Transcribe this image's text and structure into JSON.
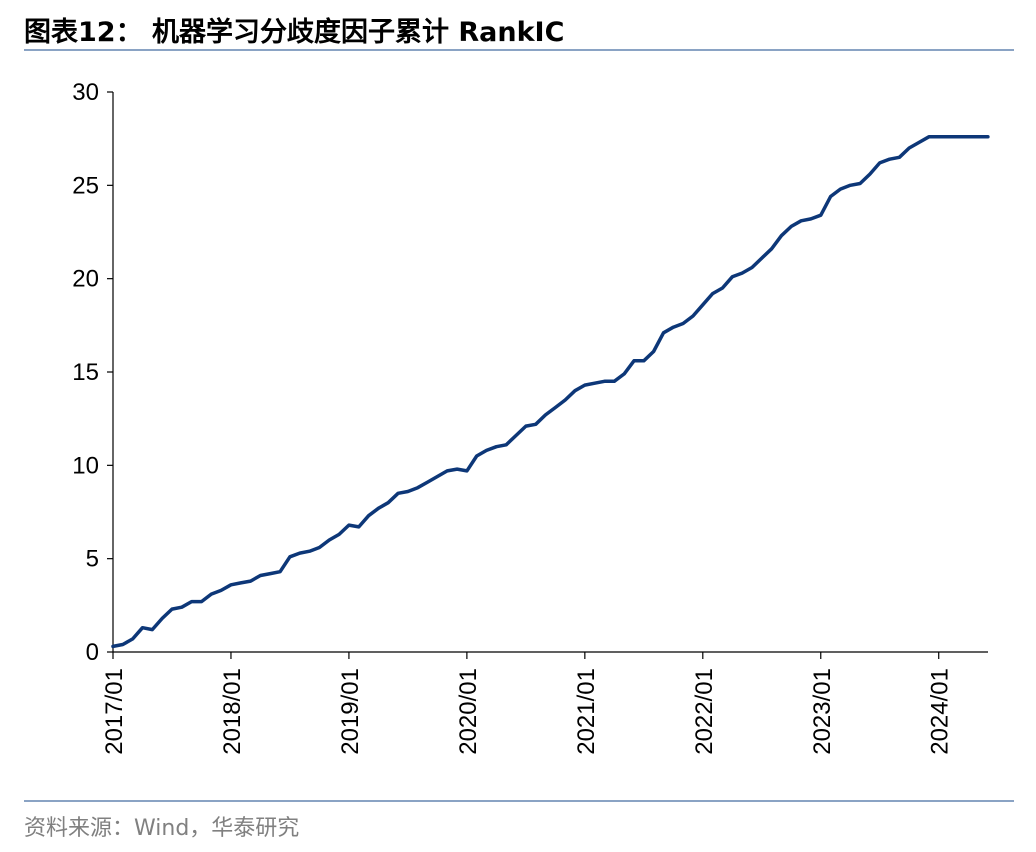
{
  "header": {
    "title": "图表12：  机器学习分歧度因子累计 RankIC"
  },
  "footer": {
    "source": "资料来源：Wind，华泰研究"
  },
  "colors": {
    "line": "#0d3778",
    "rule": "#8aa3c4",
    "source_text": "#808080"
  },
  "chart_data": {
    "type": "line",
    "title": "机器学习分歧度因子累计 RankIC",
    "xlabel": "",
    "ylabel": "",
    "ylim": [
      0,
      30
    ],
    "yticks": [
      0,
      5,
      10,
      15,
      20,
      25,
      30
    ],
    "xlim": [
      "2017/01",
      "2024/06"
    ],
    "xticks": [
      "2017/01",
      "2018/01",
      "2019/01",
      "2020/01",
      "2021/01",
      "2022/01",
      "2023/01",
      "2024/01"
    ],
    "grid": false,
    "legend": "none",
    "series": [
      {
        "x": [
          "2017/01",
          "2017/02",
          "2017/03",
          "2017/04",
          "2017/05",
          "2017/06",
          "2017/07",
          "2017/08",
          "2017/09",
          "2017/10",
          "2017/11",
          "2017/12",
          "2018/01",
          "2018/02",
          "2018/03",
          "2018/04",
          "2018/05",
          "2018/06",
          "2018/07",
          "2018/08",
          "2018/09",
          "2018/10",
          "2018/11",
          "2018/12",
          "2019/01",
          "2019/02",
          "2019/03",
          "2019/04",
          "2019/05",
          "2019/06",
          "2019/07",
          "2019/08",
          "2019/09",
          "2019/10",
          "2019/11",
          "2019/12",
          "2020/01",
          "2020/02",
          "2020/03",
          "2020/04",
          "2020/05",
          "2020/06",
          "2020/07",
          "2020/08",
          "2020/09",
          "2020/10",
          "2020/11",
          "2020/12",
          "2021/01",
          "2021/02",
          "2021/03",
          "2021/04",
          "2021/05",
          "2021/06",
          "2021/07",
          "2021/08",
          "2021/09",
          "2021/10",
          "2021/11",
          "2021/12",
          "2022/01",
          "2022/02",
          "2022/03",
          "2022/04",
          "2022/05",
          "2022/06",
          "2022/07",
          "2022/08",
          "2022/09",
          "2022/10",
          "2022/11",
          "2022/12",
          "2023/01",
          "2023/02",
          "2023/03",
          "2023/04",
          "2023/05",
          "2023/06",
          "2023/07",
          "2023/08",
          "2023/09",
          "2023/10",
          "2023/11",
          "2023/12",
          "2024/01",
          "2024/02",
          "2024/03",
          "2024/04",
          "2024/05",
          "2024/06"
        ],
        "values": [
          0.3,
          0.4,
          0.7,
          1.3,
          1.2,
          1.8,
          2.3,
          2.4,
          2.7,
          2.7,
          3.1,
          3.3,
          3.6,
          3.7,
          3.8,
          4.1,
          4.2,
          4.3,
          5.1,
          5.3,
          5.4,
          5.6,
          6.0,
          6.3,
          6.8,
          6.7,
          7.3,
          7.7,
          8.0,
          8.5,
          8.6,
          8.8,
          9.1,
          9.4,
          9.7,
          9.8,
          9.7,
          10.5,
          10.8,
          11.0,
          11.1,
          11.6,
          12.1,
          12.2,
          12.7,
          13.1,
          13.5,
          14.0,
          14.3,
          14.4,
          14.5,
          14.5,
          14.9,
          15.6,
          15.6,
          16.1,
          17.1,
          17.4,
          17.6,
          18.0,
          18.6,
          19.2,
          19.5,
          20.1,
          20.3,
          20.6,
          21.1,
          21.6,
          22.3,
          22.8,
          23.1,
          23.2,
          23.4,
          24.4,
          24.8,
          25.0,
          25.1,
          25.6,
          26.2,
          26.4,
          26.5,
          27.0,
          27.3,
          27.6,
          27.6,
          27.6,
          27.6,
          27.6,
          27.6,
          27.6
        ]
      }
    ]
  }
}
